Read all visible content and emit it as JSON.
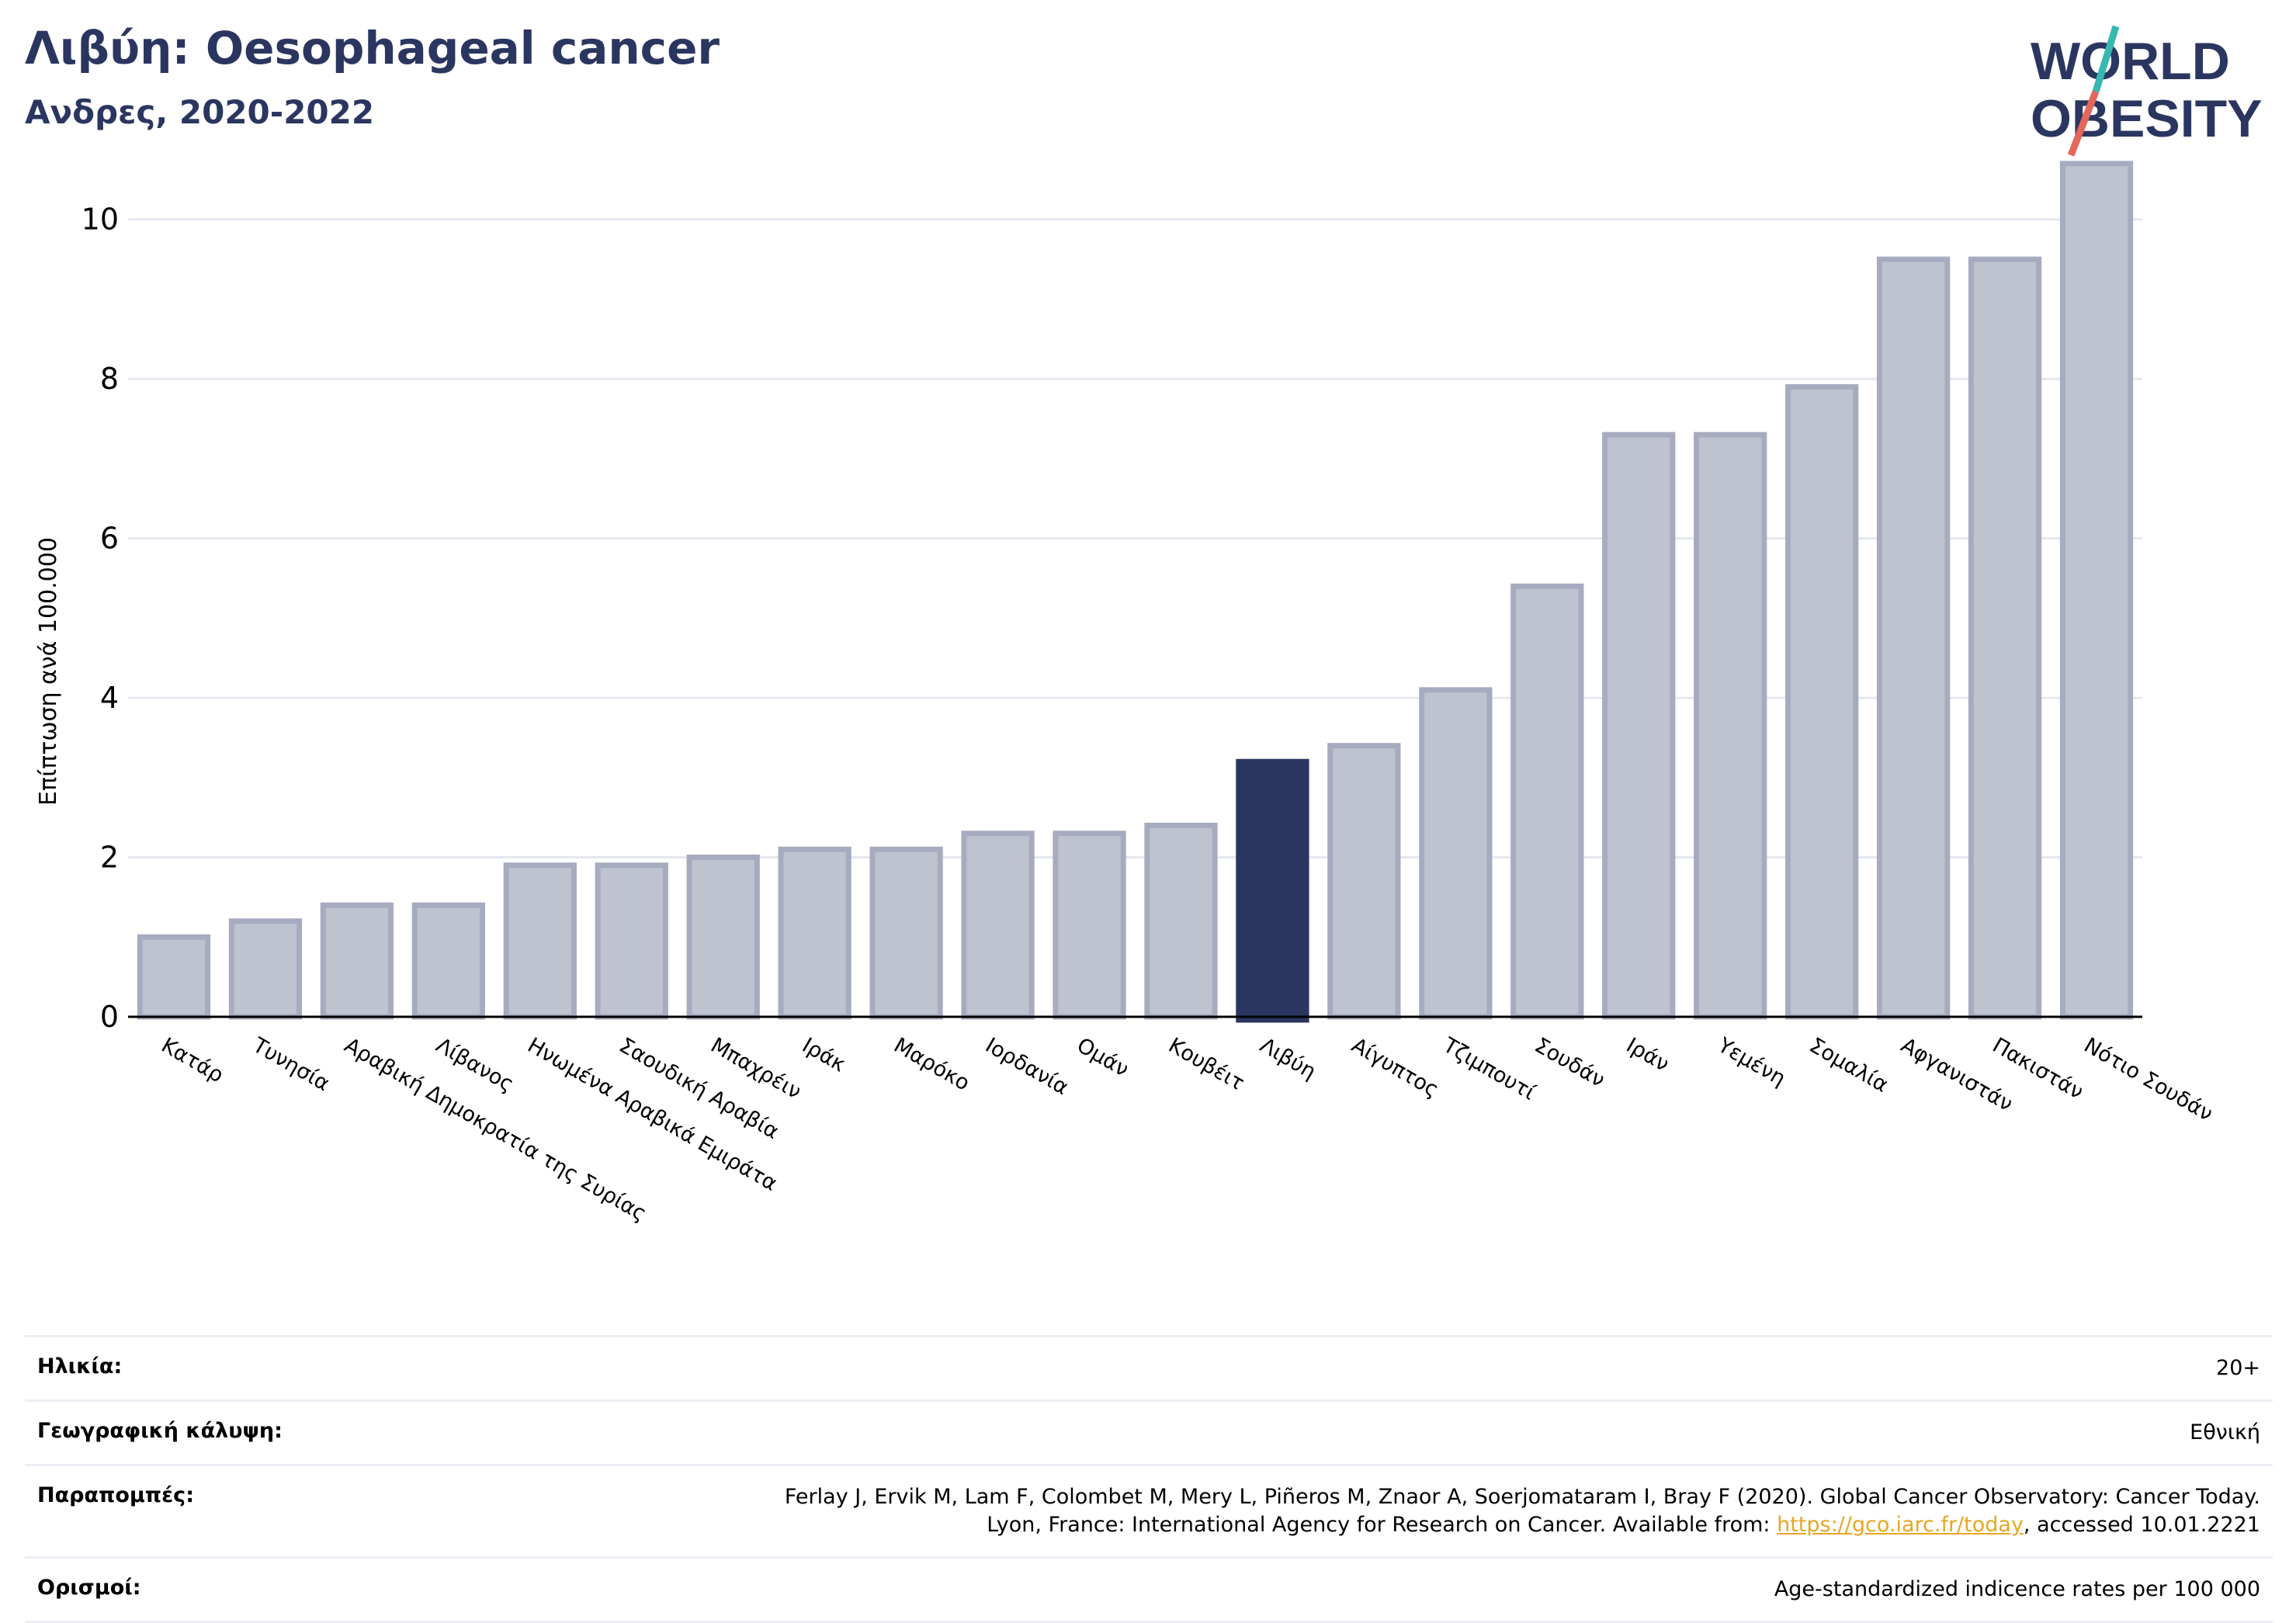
{
  "header": {
    "title": "Λιβύη: Oesophageal cancer",
    "subtitle": "Ανδρες, 2020-2022"
  },
  "logo": {
    "line1": "WORLD",
    "line2": "OBESITY",
    "text_color": "#2b3660",
    "slash_colors": [
      "#36b8b0",
      "#e4675a"
    ]
  },
  "chart_data": {
    "type": "bar",
    "title": "Λιβύη: Oesophageal cancer",
    "subtitle": "Ανδρες, 2020-2022",
    "ylabel": "Επίπτωση ανά 100.000",
    "xlabel": "",
    "ylim": [
      0,
      11
    ],
    "yticks": [
      0,
      2,
      4,
      6,
      8,
      10
    ],
    "grid": true,
    "highlight": "Λιβύη",
    "highlight_color": "#2b3660",
    "bar_color": "#bfc3d0",
    "bar_edge_color": "#a6abc0",
    "categories": [
      "Κατάρ",
      "Τυνησία",
      "Αραβική Δημοκρατία της Συρίας",
      "Λίβανος",
      "Ηνωμένα Αραβικά Εμιράτα",
      "Σαουδική Αραβία",
      "Μπαχρέιν",
      "Ιράκ",
      "Μαρόκο",
      "Ιορδανία",
      "Ομάν",
      "Κουβέιτ",
      "Λιβύη",
      "Αίγυπτος",
      "Τζιμπουτί",
      "Σουδάν",
      "Ιράν",
      "Υεμένη",
      "Σομαλία",
      "Αφγανιστάν",
      "Πακιστάν",
      "Νότιο Σουδάν"
    ],
    "values": [
      1.0,
      1.2,
      1.4,
      1.4,
      1.9,
      1.9,
      2.0,
      2.1,
      2.1,
      2.3,
      2.3,
      2.4,
      3.2,
      3.4,
      4.1,
      5.4,
      7.3,
      7.3,
      7.9,
      9.5,
      9.5,
      10.7
    ]
  },
  "info": {
    "age_label": "Ηλικία:",
    "age_value": "20+",
    "coverage_label": "Γεωγραφική κάλυψη:",
    "coverage_value": "Εθνική",
    "references_label": "Παραπομπές:",
    "references_line1": "Ferlay J, Ervik M, Lam F, Colombet M, Mery L, Piñeros M, Znaor A, Soerjomataram I, Bray F (2020). Global Cancer Observatory: Cancer Today.",
    "references_line2_pre": "Lyon, France: International Agency for Research on Cancer. Available from: ",
    "references_link": "https://gco.iarc.fr/today",
    "references_line2_post": ", accessed 10.01.2221",
    "definitions_label": "Ορισμοί:",
    "definitions_value": "Age-standardized indicence rates per 100 000"
  }
}
